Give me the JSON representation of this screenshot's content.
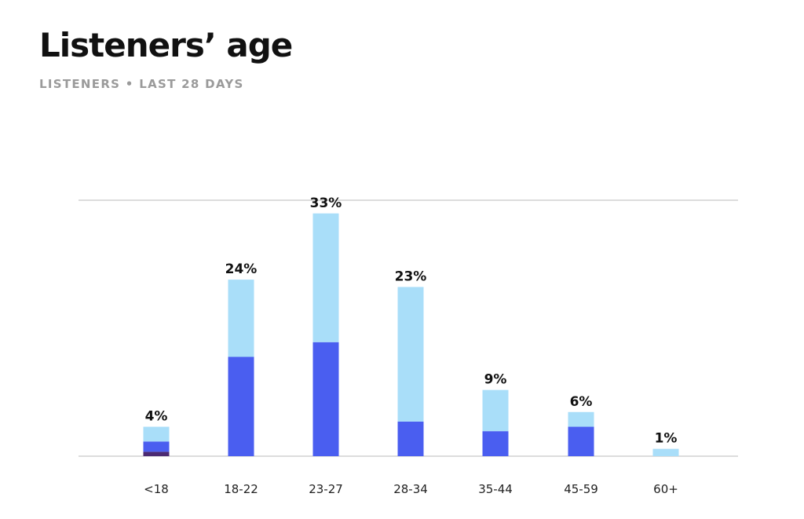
{
  "header": {
    "title": "Listeners’ age",
    "subtitle": "LISTENERS • LAST 28 DAYS"
  },
  "colors": {
    "light": "#a9def9",
    "mid": "#4a5ef0",
    "dark": "#4b2a72",
    "grid": "#c8c8c8"
  },
  "chart_data": {
    "type": "bar",
    "stacked": true,
    "categories": [
      "<18",
      "18-22",
      "23-27",
      "28-34",
      "35-44",
      "45-59",
      "60+"
    ],
    "totals": [
      4,
      24,
      33,
      23,
      9,
      6,
      1
    ],
    "data_labels": [
      "4%",
      "24%",
      "33%",
      "23%",
      "9%",
      "6%",
      "1%"
    ],
    "series": [
      {
        "color": "#4b2a72",
        "values": [
          0.6,
          0,
          0,
          0,
          0,
          0,
          0
        ]
      },
      {
        "color": "#4a5ef0",
        "values": [
          1.4,
          13.5,
          15.5,
          4.7,
          3.4,
          4.0,
          0
        ]
      },
      {
        "color": "#a9def9",
        "values": [
          2.0,
          10.5,
          17.5,
          18.3,
          5.6,
          2.0,
          1.0
        ]
      }
    ],
    "ylim": [
      0,
      35
    ],
    "grid": "top line and baseline only",
    "legend": "none"
  }
}
